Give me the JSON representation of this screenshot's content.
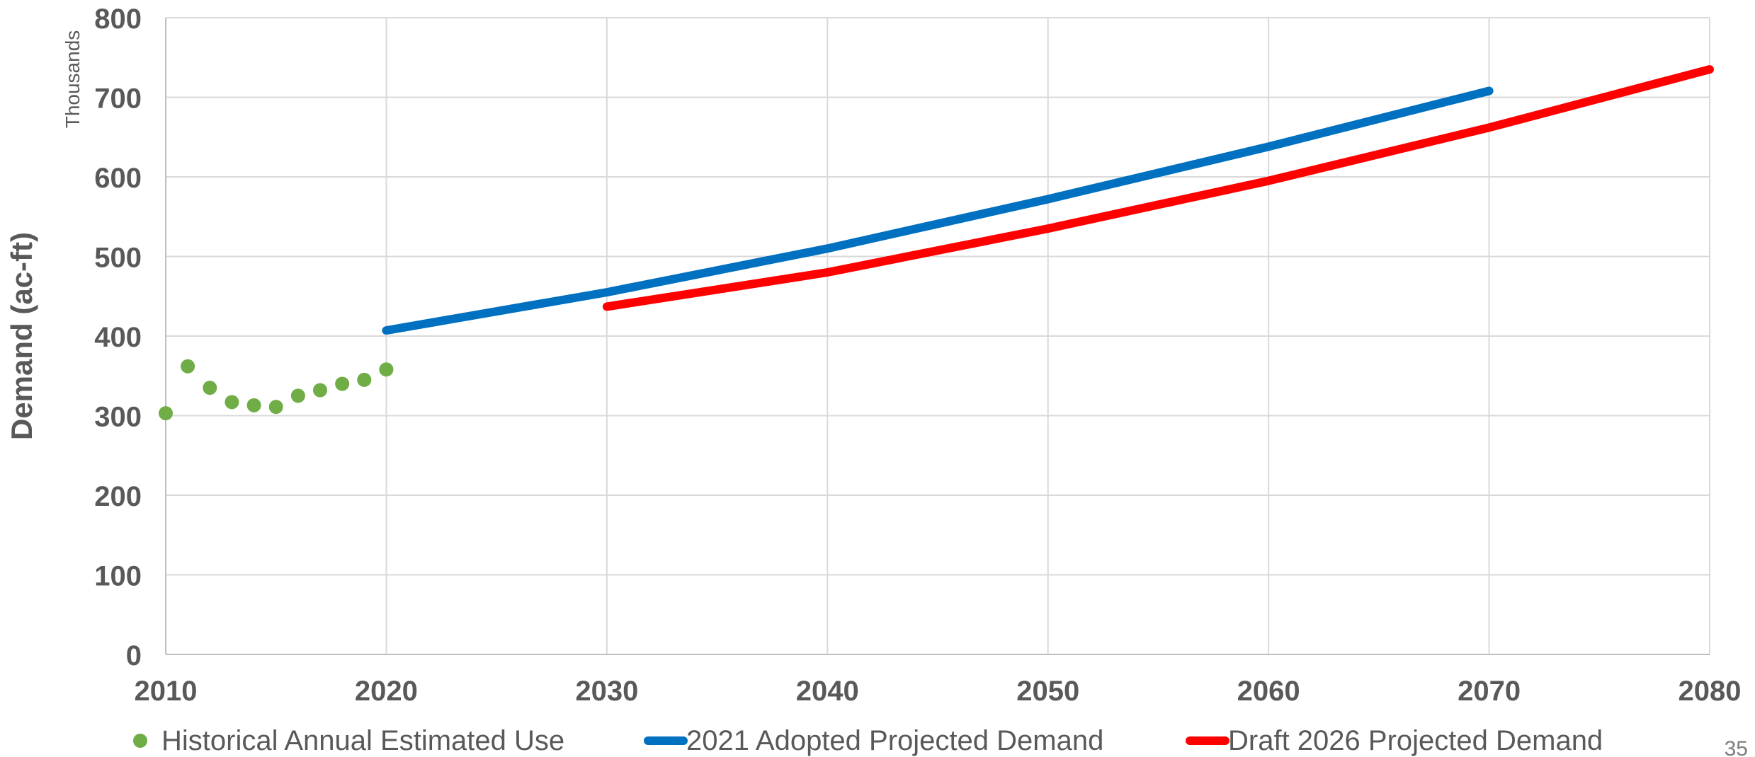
{
  "chart_data": {
    "type": "line",
    "ylabel": "Demand (ac-ft)",
    "y_units_label": "Thousands",
    "xlim": [
      2010,
      2080
    ],
    "ylim": [
      0,
      800
    ],
    "x_ticks": [
      "2010",
      "2020",
      "2030",
      "2040",
      "2050",
      "2060",
      "2070",
      "2080"
    ],
    "y_ticks": [
      "0",
      "100",
      "200",
      "300",
      "400",
      "500",
      "600",
      "700",
      "800"
    ],
    "grid": true,
    "legend_position": "bottom",
    "series": [
      {
        "name": "Historical Annual Estimated Use",
        "kind": "scatter",
        "color": "#70AD47",
        "points": [
          {
            "x": 2010,
            "y": 303
          },
          {
            "x": 2011,
            "y": 362
          },
          {
            "x": 2012,
            "y": 335
          },
          {
            "x": 2013,
            "y": 317
          },
          {
            "x": 2014,
            "y": 313
          },
          {
            "x": 2015,
            "y": 311
          },
          {
            "x": 2016,
            "y": 325
          },
          {
            "x": 2017,
            "y": 332
          },
          {
            "x": 2018,
            "y": 340
          },
          {
            "x": 2019,
            "y": 345
          },
          {
            "x": 2020,
            "y": 358
          }
        ]
      },
      {
        "name": "2021 Adopted Projected Demand",
        "kind": "line",
        "color": "#0070C0",
        "points": [
          {
            "x": 2020,
            "y": 407
          },
          {
            "x": 2030,
            "y": 455
          },
          {
            "x": 2040,
            "y": 510
          },
          {
            "x": 2050,
            "y": 572
          },
          {
            "x": 2060,
            "y": 638
          },
          {
            "x": 2070,
            "y": 708
          }
        ]
      },
      {
        "name": "Draft 2026 Projected Demand",
        "kind": "line",
        "color": "#FF0000",
        "points": [
          {
            "x": 2030,
            "y": 437
          },
          {
            "x": 2040,
            "y": 480
          },
          {
            "x": 2050,
            "y": 535
          },
          {
            "x": 2060,
            "y": 595
          },
          {
            "x": 2070,
            "y": 662
          },
          {
            "x": 2080,
            "y": 735
          }
        ]
      }
    ]
  },
  "page_number": "35"
}
